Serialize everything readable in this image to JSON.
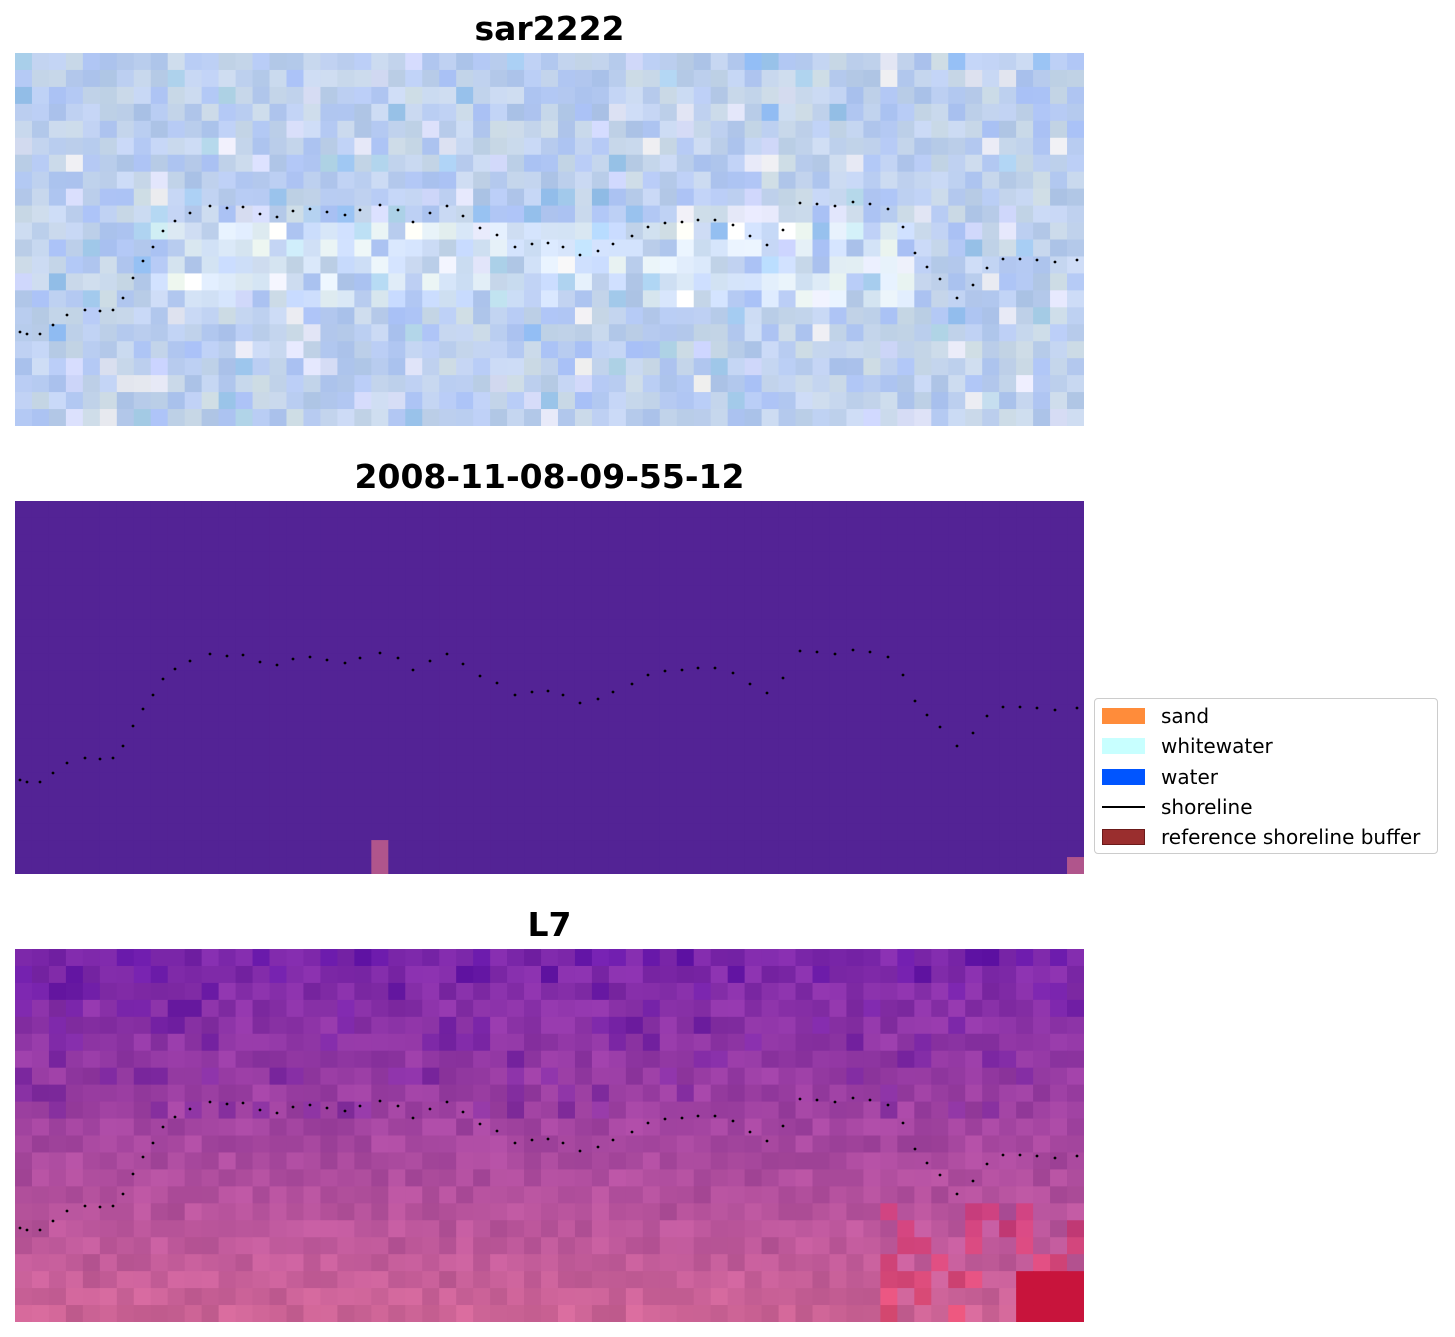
{
  "panels": [
    {
      "id": "sar",
      "title": "sar2222",
      "style": "sar"
    },
    {
      "id": "class",
      "title": "2008-11-08-09-55-12",
      "style": "class"
    },
    {
      "id": "l7",
      "title": "L7",
      "style": "l7"
    }
  ],
  "colors": {
    "sar_base": "#aac4e4",
    "class_background": "#532395",
    "class_patch": "#b0558c",
    "l7_dark": "#6a1aa0",
    "l7_light": "#c05d8f",
    "l7_red": "#c8003a",
    "shoreline_dot": "#000000"
  },
  "legend": {
    "items": [
      {
        "label": "sand",
        "kind": "patch",
        "fill": "#ff8c3a",
        "edge": "#ff8c3a"
      },
      {
        "label": "whitewater",
        "kind": "patch",
        "fill": "#c8ffff",
        "edge": "#c8ffff"
      },
      {
        "label": "water",
        "kind": "patch",
        "fill": "#0055ff",
        "edge": "#0055ff"
      },
      {
        "label": "shoreline",
        "kind": "line",
        "fill": "#000000",
        "edge": "#000000"
      },
      {
        "label": "reference shoreline buffer",
        "kind": "patch",
        "fill": "#9a2e2e",
        "edge": "#6b1a1a"
      }
    ]
  }
}
